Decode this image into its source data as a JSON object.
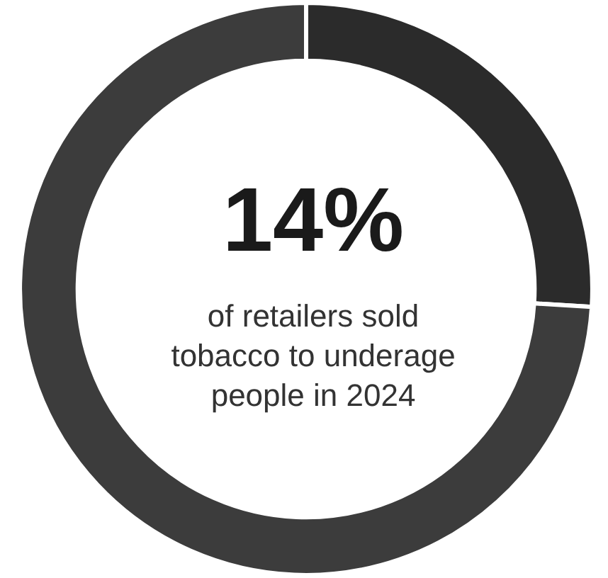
{
  "chart_data": {
    "type": "donut",
    "title": "14%",
    "subtitle": "of retailers sold\ntobacco to underage\npeople in 2024",
    "categories": [
      null,
      null
    ],
    "values": [
      26,
      74
    ],
    "colors": [
      "#2b2b2b",
      "#3c3c3c"
    ]
  }
}
